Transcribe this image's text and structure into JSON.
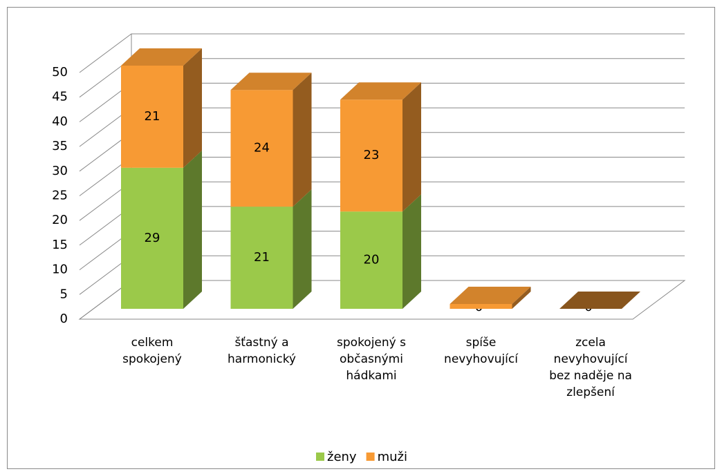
{
  "chart_data": {
    "type": "bar3d_stacked",
    "categories": [
      "celkem spokojený",
      "šťastný a harmonický",
      "spokojený s občasnými hádkami",
      "spíše nevyhovující",
      "zcela nevyhovující bez naděje na zlepšení"
    ],
    "series": [
      {
        "name": "ženy",
        "color": "#9bc94a",
        "values": [
          29,
          21,
          20,
          0,
          0
        ]
      },
      {
        "name": "muži",
        "color": "#f79a34",
        "values": [
          21,
          24,
          23,
          1,
          0
        ]
      }
    ],
    "ylim": [
      0,
      50
    ],
    "yticks": [
      0,
      5,
      10,
      15,
      20,
      25,
      30,
      35,
      40,
      45,
      50
    ],
    "grid": true,
    "legend": "bottom"
  }
}
